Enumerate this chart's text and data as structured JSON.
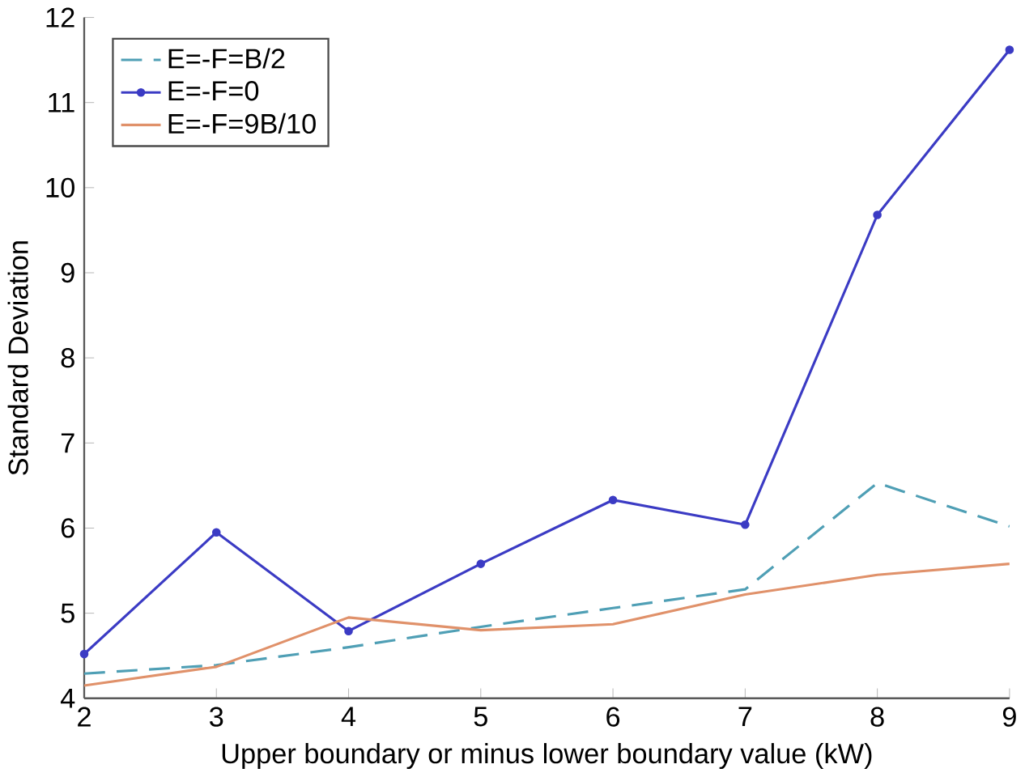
{
  "chart_data": {
    "type": "line",
    "xlabel": "Upper boundary or minus lower boundary value (kW)",
    "ylabel": "Standard Deviation",
    "x": [
      2,
      3,
      4,
      5,
      6,
      7,
      8,
      9
    ],
    "series": [
      {
        "name": "E=-F=B/2",
        "color": "#4f9fb5",
        "line_style": "dashed",
        "marker": "none",
        "values": [
          4.29,
          4.39,
          4.6,
          4.84,
          5.06,
          5.28,
          6.53,
          6.02
        ]
      },
      {
        "name": "E=-F=0",
        "color": "#3b3bc4",
        "line_style": "solid",
        "marker": "circle",
        "values": [
          4.52,
          5.95,
          4.79,
          5.58,
          6.33,
          6.04,
          9.68,
          11.62
        ]
      },
      {
        "name": "E=-F=9B/10",
        "color": "#e0916a",
        "line_style": "solid",
        "marker": "none",
        "values": [
          4.15,
          4.37,
          4.95,
          4.8,
          4.87,
          5.22,
          5.45,
          5.58
        ]
      }
    ],
    "xlim": [
      2,
      9
    ],
    "ylim": [
      4,
      12
    ],
    "xticks": [
      2,
      3,
      4,
      5,
      6,
      7,
      8,
      9
    ],
    "yticks": [
      4,
      5,
      6,
      7,
      8,
      9,
      10,
      11,
      12
    ],
    "grid": false,
    "legend": "top left"
  }
}
